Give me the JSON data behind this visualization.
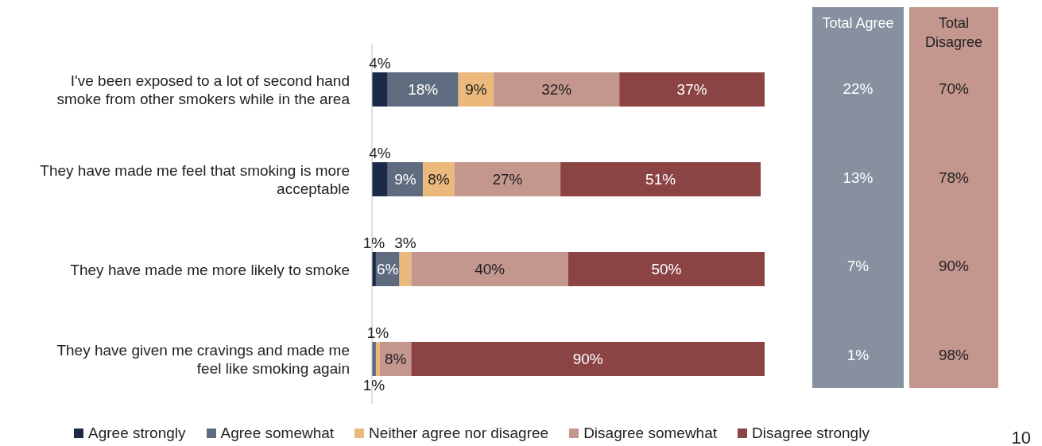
{
  "chart_data": {
    "type": "bar",
    "orientation": "horizontal",
    "stacked": true,
    "legend": "bottom",
    "categories": [
      "I've been exposed to a lot of second hand smoke from other smokers while in the area",
      "They have made me feel that smoking is more acceptable",
      "They have made me more likely to smoke",
      "They have given me cravings and made me feel like smoking again"
    ],
    "series": [
      {
        "name": "Agree strongly",
        "color": "#1b2a47",
        "values": [
          4,
          4,
          1,
          null
        ],
        "value_labels": [
          "4%",
          "4%",
          "1%",
          null
        ]
      },
      {
        "name": "Agree somewhat",
        "color": "#5f6b7f",
        "values": [
          18,
          9,
          6,
          1
        ],
        "value_labels": [
          "18%",
          "9%",
          "6%",
          "1%"
        ]
      },
      {
        "name": "Neither agree nor disagree",
        "color": "#ebb97b",
        "values": [
          9,
          8,
          3,
          1
        ],
        "value_labels": [
          "9%",
          "8%",
          "3%",
          "1%"
        ]
      },
      {
        "name": "Disagree somewhat",
        "color": "#c4978e",
        "values": [
          32,
          27,
          40,
          8
        ],
        "value_labels": [
          "32%",
          "27%",
          "40%",
          "8%"
        ]
      },
      {
        "name": "Disagree strongly",
        "color": "#8b4343",
        "values": [
          37,
          51,
          50,
          90
        ],
        "value_labels": [
          "37%",
          "51%",
          "50%",
          "90%"
        ]
      }
    ],
    "annotations": [
      "Total Agree",
      "22%",
      "13%",
      "7%",
      "1%",
      "Total Disagree",
      "70%",
      "78%",
      "90%",
      "98%",
      "10"
    ]
  }
}
